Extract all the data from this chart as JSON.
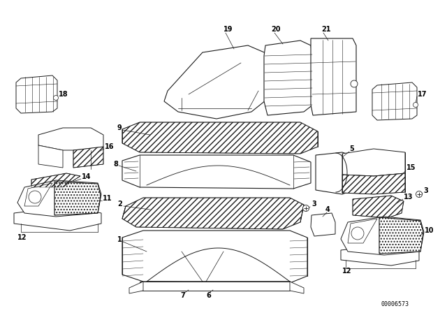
{
  "bg_color": "#ffffff",
  "diagram_id": "00006573",
  "line_color": "#1a1a1a",
  "lw": 0.7,
  "fs_label": 7.0
}
